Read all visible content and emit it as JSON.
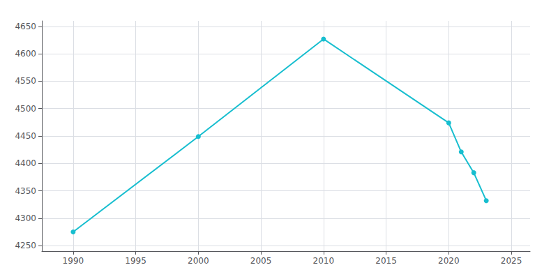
{
  "chart_data": {
    "type": "line",
    "x": [
      1990,
      2000,
      2010,
      2020,
      2021,
      2022,
      2023
    ],
    "values": [
      4275,
      4449,
      4627,
      4474,
      4421,
      4383,
      4332
    ],
    "color": "#17BECF",
    "marker": "circle",
    "xlim": [
      1987.5,
      2026.5
    ],
    "ylim": [
      4240,
      4660
    ],
    "xticks": [
      1990,
      1995,
      2000,
      2005,
      2010,
      2015,
      2020,
      2025
    ],
    "yticks": [
      4250,
      4300,
      4350,
      4400,
      4450,
      4500,
      4550,
      4600,
      4650
    ],
    "grid": true
  }
}
